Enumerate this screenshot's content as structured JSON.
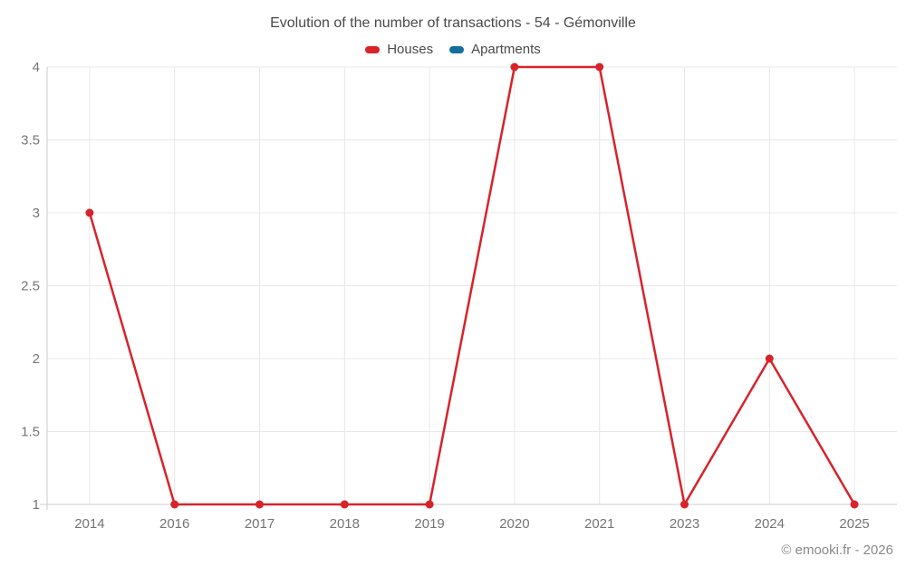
{
  "chart_data": {
    "type": "line",
    "title": "Evolution of the number of transactions - 54 - Gémonville",
    "categories": [
      "2014",
      "2016",
      "2017",
      "2018",
      "2019",
      "2020",
      "2021",
      "2023",
      "2024",
      "2025"
    ],
    "series": [
      {
        "name": "Houses",
        "color": "#d8232a",
        "values": [
          3,
          1,
          1,
          1,
          1,
          4,
          4,
          1,
          2,
          1
        ]
      },
      {
        "name": "Apartments",
        "color": "#146f9e",
        "values": [
          null,
          null,
          null,
          null,
          null,
          null,
          null,
          null,
          null,
          null
        ]
      }
    ],
    "xlabel": "",
    "ylabel": "",
    "ylim": [
      1,
      4
    ],
    "yticks": [
      1,
      1.5,
      2,
      2.5,
      3,
      3.5,
      4
    ],
    "grid": true,
    "legend_position": "top",
    "marker": "circle",
    "watermark": "© emooki.fr - 2026"
  },
  "colors": {
    "grid": "#e8e8e8",
    "axis": "#cccccc",
    "axis_label": "#757575"
  }
}
